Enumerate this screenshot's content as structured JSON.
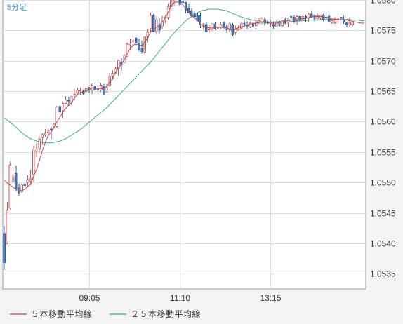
{
  "timeframe_label": "5分足",
  "legend": [
    {
      "label": "５本移動平均線",
      "color": "#b8474e"
    },
    {
      "label": "２５本移動平均線",
      "color": "#3cae88"
    }
  ],
  "colors": {
    "up_body": "#ffffff",
    "up_border": "#c75c5c",
    "down_body": "#4a7fc0",
    "down_border": "#2f5f9e",
    "ma5": "#b8474e",
    "ma25": "#3cae88",
    "grid": "#dddddd",
    "plot_bg": "#ffffff",
    "page_bg": "#f4f4f4"
  },
  "chart_data": {
    "type": "candlestick",
    "title": "",
    "xlabel": "",
    "ylabel": "",
    "ylim": [
      1.05325,
      1.058
    ],
    "y_ticks": [
      "1.0535",
      "1.0540",
      "1.0545",
      "1.0550",
      "1.0555",
      "1.0560",
      "1.0565",
      "1.0570",
      "1.0575",
      "1.0580"
    ],
    "x_ticks": [
      {
        "index": 29,
        "label": "09:05"
      },
      {
        "index": 60,
        "label": "11:10"
      },
      {
        "index": 91,
        "label": "13:15"
      }
    ],
    "bar_count": 124,
    "candles": [
      [
        1.05416,
        1.05429,
        1.05356,
        1.05368
      ],
      [
        1.054,
        1.05468,
        1.05398,
        1.05454
      ],
      [
        1.05458,
        1.05534,
        1.05456,
        1.05529
      ],
      [
        1.05502,
        1.05526,
        1.05491,
        1.05511
      ],
      [
        1.05516,
        1.05528,
        1.05486,
        1.0549
      ],
      [
        1.05491,
        1.05498,
        1.05477,
        1.05483
      ],
      [
        1.05485,
        1.05498,
        1.05483,
        1.05496
      ],
      [
        1.05497,
        1.05509,
        1.05487,
        1.05495
      ],
      [
        1.055,
        1.05512,
        1.05493,
        1.05505
      ],
      [
        1.05502,
        1.05521,
        1.05496,
        1.05506
      ],
      [
        1.05513,
        1.05561,
        1.05501,
        1.05553
      ],
      [
        1.0555,
        1.05564,
        1.05542,
        1.05555
      ],
      [
        1.05555,
        1.05576,
        1.05549,
        1.05571
      ],
      [
        1.05574,
        1.05581,
        1.05562,
        1.05579
      ],
      [
        1.05579,
        1.05588,
        1.05575,
        1.05581
      ],
      [
        1.05582,
        1.05591,
        1.05576,
        1.05586
      ],
      [
        1.05588,
        1.05592,
        1.05571,
        1.05587
      ],
      [
        1.05592,
        1.05598,
        1.05589,
        1.05595
      ],
      [
        1.05592,
        1.05626,
        1.0559,
        1.05624
      ],
      [
        1.05625,
        1.05626,
        1.05611,
        1.05616
      ],
      [
        1.05618,
        1.05633,
        1.05606,
        1.0563
      ],
      [
        1.0563,
        1.05642,
        1.05629,
        1.05636
      ],
      [
        1.05635,
        1.05641,
        1.05626,
        1.05634
      ],
      [
        1.05632,
        1.05642,
        1.05627,
        1.05641
      ],
      [
        1.05644,
        1.05654,
        1.05635,
        1.05645
      ],
      [
        1.05647,
        1.05656,
        1.05643,
        1.05652
      ],
      [
        1.05652,
        1.05656,
        1.05643,
        1.05652
      ],
      [
        1.0565,
        1.05653,
        1.05643,
        1.05646
      ],
      [
        1.0565,
        1.05656,
        1.0565,
        1.05654
      ],
      [
        1.05656,
        1.05657,
        1.05647,
        1.05653
      ],
      [
        1.05651,
        1.05663,
        1.05645,
        1.0566
      ],
      [
        1.05658,
        1.05664,
        1.0565,
        1.05653
      ],
      [
        1.05654,
        1.05665,
        1.05648,
        1.05652
      ],
      [
        1.05652,
        1.05664,
        1.05649,
        1.0566
      ],
      [
        1.05658,
        1.05662,
        1.05644,
        1.05644
      ],
      [
        1.05649,
        1.05662,
        1.05648,
        1.05657
      ],
      [
        1.05659,
        1.0568,
        1.05657,
        1.05674
      ],
      [
        1.05675,
        1.05684,
        1.05669,
        1.05679
      ],
      [
        1.0568,
        1.0569,
        1.05679,
        1.05687
      ],
      [
        1.05687,
        1.05702,
        1.05675,
        1.05701
      ],
      [
        1.05697,
        1.05705,
        1.05684,
        1.05694
      ],
      [
        1.05697,
        1.05711,
        1.05696,
        1.05709
      ],
      [
        1.05707,
        1.0573,
        1.05706,
        1.05728
      ],
      [
        1.05726,
        1.05736,
        1.05717,
        1.05727
      ],
      [
        1.05731,
        1.05741,
        1.05724,
        1.05734
      ],
      [
        1.05737,
        1.05739,
        1.05725,
        1.05729
      ],
      [
        1.05729,
        1.05736,
        1.05716,
        1.05718
      ],
      [
        1.0572,
        1.05733,
        1.05712,
        1.05715
      ],
      [
        1.05714,
        1.0574,
        1.05711,
        1.05739
      ],
      [
        1.05739,
        1.05752,
        1.05731,
        1.05747
      ],
      [
        1.05753,
        1.0578,
        1.05746,
        1.05775
      ],
      [
        1.05775,
        1.05777,
        1.05747,
        1.05748
      ],
      [
        1.05748,
        1.05773,
        1.05744,
        1.05768
      ],
      [
        1.0576,
        1.0577,
        1.05745,
        1.05751
      ],
      [
        1.05757,
        1.05774,
        1.05752,
        1.05764
      ],
      [
        1.05767,
        1.05775,
        1.05762,
        1.05772
      ],
      [
        1.05771,
        1.05794,
        1.05768,
        1.05789
      ],
      [
        1.05789,
        1.05803,
        1.05782,
        1.05799
      ],
      [
        1.05802,
        1.05805,
        1.0579,
        1.05804
      ],
      [
        1.05804,
        1.05814,
        1.058,
        1.05805
      ],
      [
        1.05805,
        1.05806,
        1.0579,
        1.05793
      ],
      [
        1.05798,
        1.05806,
        1.05794,
        1.05796
      ],
      [
        1.05796,
        1.05797,
        1.05778,
        1.05784
      ],
      [
        1.05786,
        1.05794,
        1.05779,
        1.05779
      ],
      [
        1.05782,
        1.05786,
        1.05772,
        1.05774
      ],
      [
        1.05777,
        1.05781,
        1.05771,
        1.05773
      ],
      [
        1.05774,
        1.0578,
        1.05765,
        1.05766
      ],
      [
        1.05774,
        1.05779,
        1.05754,
        1.05759
      ],
      [
        1.05758,
        1.05762,
        1.05752,
        1.0576
      ],
      [
        1.0576,
        1.05763,
        1.05747,
        1.05748
      ],
      [
        1.05751,
        1.05759,
        1.05746,
        1.05752
      ],
      [
        1.05752,
        1.05762,
        1.0575,
        1.05761
      ],
      [
        1.05761,
        1.05763,
        1.05751,
        1.05753
      ],
      [
        1.05753,
        1.0576,
        1.05747,
        1.05755
      ],
      [
        1.05755,
        1.05763,
        1.05752,
        1.0576
      ],
      [
        1.05762,
        1.05765,
        1.05753,
        1.05756
      ],
      [
        1.05757,
        1.0576,
        1.05746,
        1.05751
      ],
      [
        1.05751,
        1.05763,
        1.05747,
        1.05761
      ],
      [
        1.05759,
        1.05762,
        1.0574,
        1.05743
      ],
      [
        1.05747,
        1.05758,
        1.05743,
        1.05752
      ],
      [
        1.05751,
        1.05758,
        1.05749,
        1.05754
      ],
      [
        1.05754,
        1.05763,
        1.05752,
        1.05761
      ],
      [
        1.05762,
        1.05769,
        1.05755,
        1.0576
      ],
      [
        1.05759,
        1.05765,
        1.05752,
        1.05757
      ],
      [
        1.05756,
        1.05765,
        1.05754,
        1.05762
      ],
      [
        1.05762,
        1.05765,
        1.05754,
        1.05756
      ],
      [
        1.05758,
        1.0577,
        1.05752,
        1.05764
      ],
      [
        1.05763,
        1.0577,
        1.0576,
        1.05766
      ],
      [
        1.05762,
        1.05772,
        1.0576,
        1.0577
      ],
      [
        1.05768,
        1.05772,
        1.05758,
        1.05762
      ],
      [
        1.05763,
        1.05766,
        1.0576,
        1.05762
      ],
      [
        1.05762,
        1.05768,
        1.05755,
        1.05762
      ],
      [
        1.0576,
        1.05765,
        1.05752,
        1.05757
      ],
      [
        1.05757,
        1.05768,
        1.05755,
        1.05764
      ],
      [
        1.05765,
        1.05766,
        1.05756,
        1.05758
      ],
      [
        1.05758,
        1.05768,
        1.05756,
        1.05766
      ],
      [
        1.05768,
        1.05771,
        1.0576,
        1.05762
      ],
      [
        1.05762,
        1.0577,
        1.05755,
        1.0577
      ],
      [
        1.05773,
        1.0578,
        1.05766,
        1.05772
      ],
      [
        1.05772,
        1.05775,
        1.05762,
        1.05765
      ],
      [
        1.05766,
        1.05775,
        1.05759,
        1.05773
      ],
      [
        1.05773,
        1.05774,
        1.05763,
        1.05767
      ],
      [
        1.05768,
        1.05775,
        1.05765,
        1.05773
      ],
      [
        1.05773,
        1.05776,
        1.05763,
        1.05772
      ],
      [
        1.0577,
        1.05779,
        1.05764,
        1.05777
      ],
      [
        1.05777,
        1.05782,
        1.0577,
        1.05772
      ],
      [
        1.05775,
        1.05776,
        1.05765,
        1.05769
      ],
      [
        1.0577,
        1.05778,
        1.05767,
        1.05774
      ],
      [
        1.05771,
        1.05775,
        1.05768,
        1.05775
      ],
      [
        1.05775,
        1.05777,
        1.05765,
        1.05768
      ],
      [
        1.05772,
        1.05781,
        1.05768,
        1.05771
      ],
      [
        1.05773,
        1.05776,
        1.05764,
        1.05764
      ],
      [
        1.05763,
        1.05768,
        1.05761,
        1.05766
      ],
      [
        1.05762,
        1.05772,
        1.05761,
        1.05769
      ],
      [
        1.05768,
        1.05772,
        1.05761,
        1.05769
      ],
      [
        1.05772,
        1.05778,
        1.05765,
        1.0577
      ],
      [
        1.05768,
        1.05774,
        1.0576,
        1.05764
      ],
      [
        1.05762,
        1.05764,
        1.05755,
        1.05759
      ],
      [
        1.05759,
        1.05772,
        1.05756,
        1.05762
      ],
      [
        1.0576,
        1.05765,
        1.05755,
        1.05764
      ]
    ],
    "ma5": [
      1.05505,
      1.05499,
      1.05496,
      1.05492,
      1.05489,
      1.05486,
      1.05487,
      1.05489,
      1.05493,
      1.05497,
      1.0551,
      1.05521,
      1.05536,
      1.05552,
      1.05566,
      1.05577,
      1.05583,
      1.0559,
      1.056,
      1.05607,
      1.05616,
      1.05622,
      1.05628,
      1.05631,
      1.05639,
      1.05644,
      1.05648,
      1.05649,
      1.0565,
      1.05653,
      1.05655,
      1.05655,
      1.05654,
      1.05654,
      1.05654,
      1.05658,
      1.05664,
      1.0567,
      1.05681,
      1.05688,
      1.05694,
      1.05702,
      1.05711,
      1.0572,
      1.05726,
      1.05727,
      1.05726,
      1.05725,
      1.0573,
      1.05739,
      1.05748,
      1.05752,
      1.05755,
      1.05758,
      1.05764,
      1.0577,
      1.0578,
      1.0579,
      1.05796,
      1.05797,
      1.05796,
      1.05792,
      1.05785,
      1.05779,
      1.05774,
      1.05771,
      1.05766,
      1.05761,
      1.05757,
      1.05755,
      1.05754,
      1.05754,
      1.05755,
      1.05755,
      1.05755,
      1.05755,
      1.05754,
      1.05752,
      1.05751,
      1.05752,
      1.05755,
      1.05756,
      1.05757,
      1.05759,
      1.0576,
      1.05761,
      1.05762,
      1.05763,
      1.05764,
      1.05764,
      1.05763,
      1.05762,
      1.05762,
      1.05762,
      1.05763,
      1.05764,
      1.05765,
      1.05766,
      1.05767,
      1.05768,
      1.05769,
      1.05769,
      1.05769,
      1.0577,
      1.05771,
      1.05772,
      1.05773,
      1.05773,
      1.05773,
      1.05772,
      1.05771,
      1.0577,
      1.05769,
      1.05768,
      1.05768,
      1.05768,
      1.05768,
      1.05767,
      1.05766,
      1.05765,
      1.05764,
      1.05763,
      1.05762,
      1.05762
    ],
    "ma25": [
      1.05606,
      1.05603,
      1.05599,
      1.05595,
      1.05591,
      1.05586,
      1.05582,
      1.05578,
      1.05575,
      1.05572,
      1.0557,
      1.05568,
      1.05567,
      1.05566,
      1.05566,
      1.05565,
      1.05565,
      1.05566,
      1.05567,
      1.05568,
      1.0557,
      1.05572,
      1.05575,
      1.05578,
      1.05581,
      1.05584,
      1.05587,
      1.05591,
      1.05595,
      1.05599,
      1.05603,
      1.05607,
      1.05611,
      1.05615,
      1.05619,
      1.05623,
      1.05628,
      1.05633,
      1.05638,
      1.05643,
      1.05648,
      1.05653,
      1.05658,
      1.05663,
      1.05668,
      1.05673,
      1.05678,
      1.05683,
      1.05688,
      1.05693,
      1.05698,
      1.05704,
      1.0571,
      1.05716,
      1.05722,
      1.05728,
      1.05734,
      1.0574,
      1.05746,
      1.05751,
      1.05756,
      1.05761,
      1.05766,
      1.0577,
      1.05773,
      1.05776,
      1.05779,
      1.05781,
      1.05783,
      1.05784,
      1.05785,
      1.05785,
      1.05785,
      1.05785,
      1.05784,
      1.05783,
      1.05782,
      1.0578,
      1.05778,
      1.05776,
      1.05774,
      1.05772,
      1.05771,
      1.05769,
      1.05768,
      1.05767,
      1.05766,
      1.05765,
      1.05765,
      1.05764,
      1.05764,
      1.05764,
      1.05764,
      1.05764,
      1.05764,
      1.05764,
      1.05764,
      1.05764,
      1.05765,
      1.05765,
      1.05765,
      1.05766,
      1.05766,
      1.05766,
      1.05767,
      1.05767,
      1.05767,
      1.05767,
      1.05768,
      1.05768,
      1.05768,
      1.05768,
      1.05768,
      1.05768,
      1.05768,
      1.05768,
      1.05768,
      1.05768,
      1.05768,
      1.05767,
      1.05767,
      1.05767,
      1.05766,
      1.05766
    ]
  }
}
